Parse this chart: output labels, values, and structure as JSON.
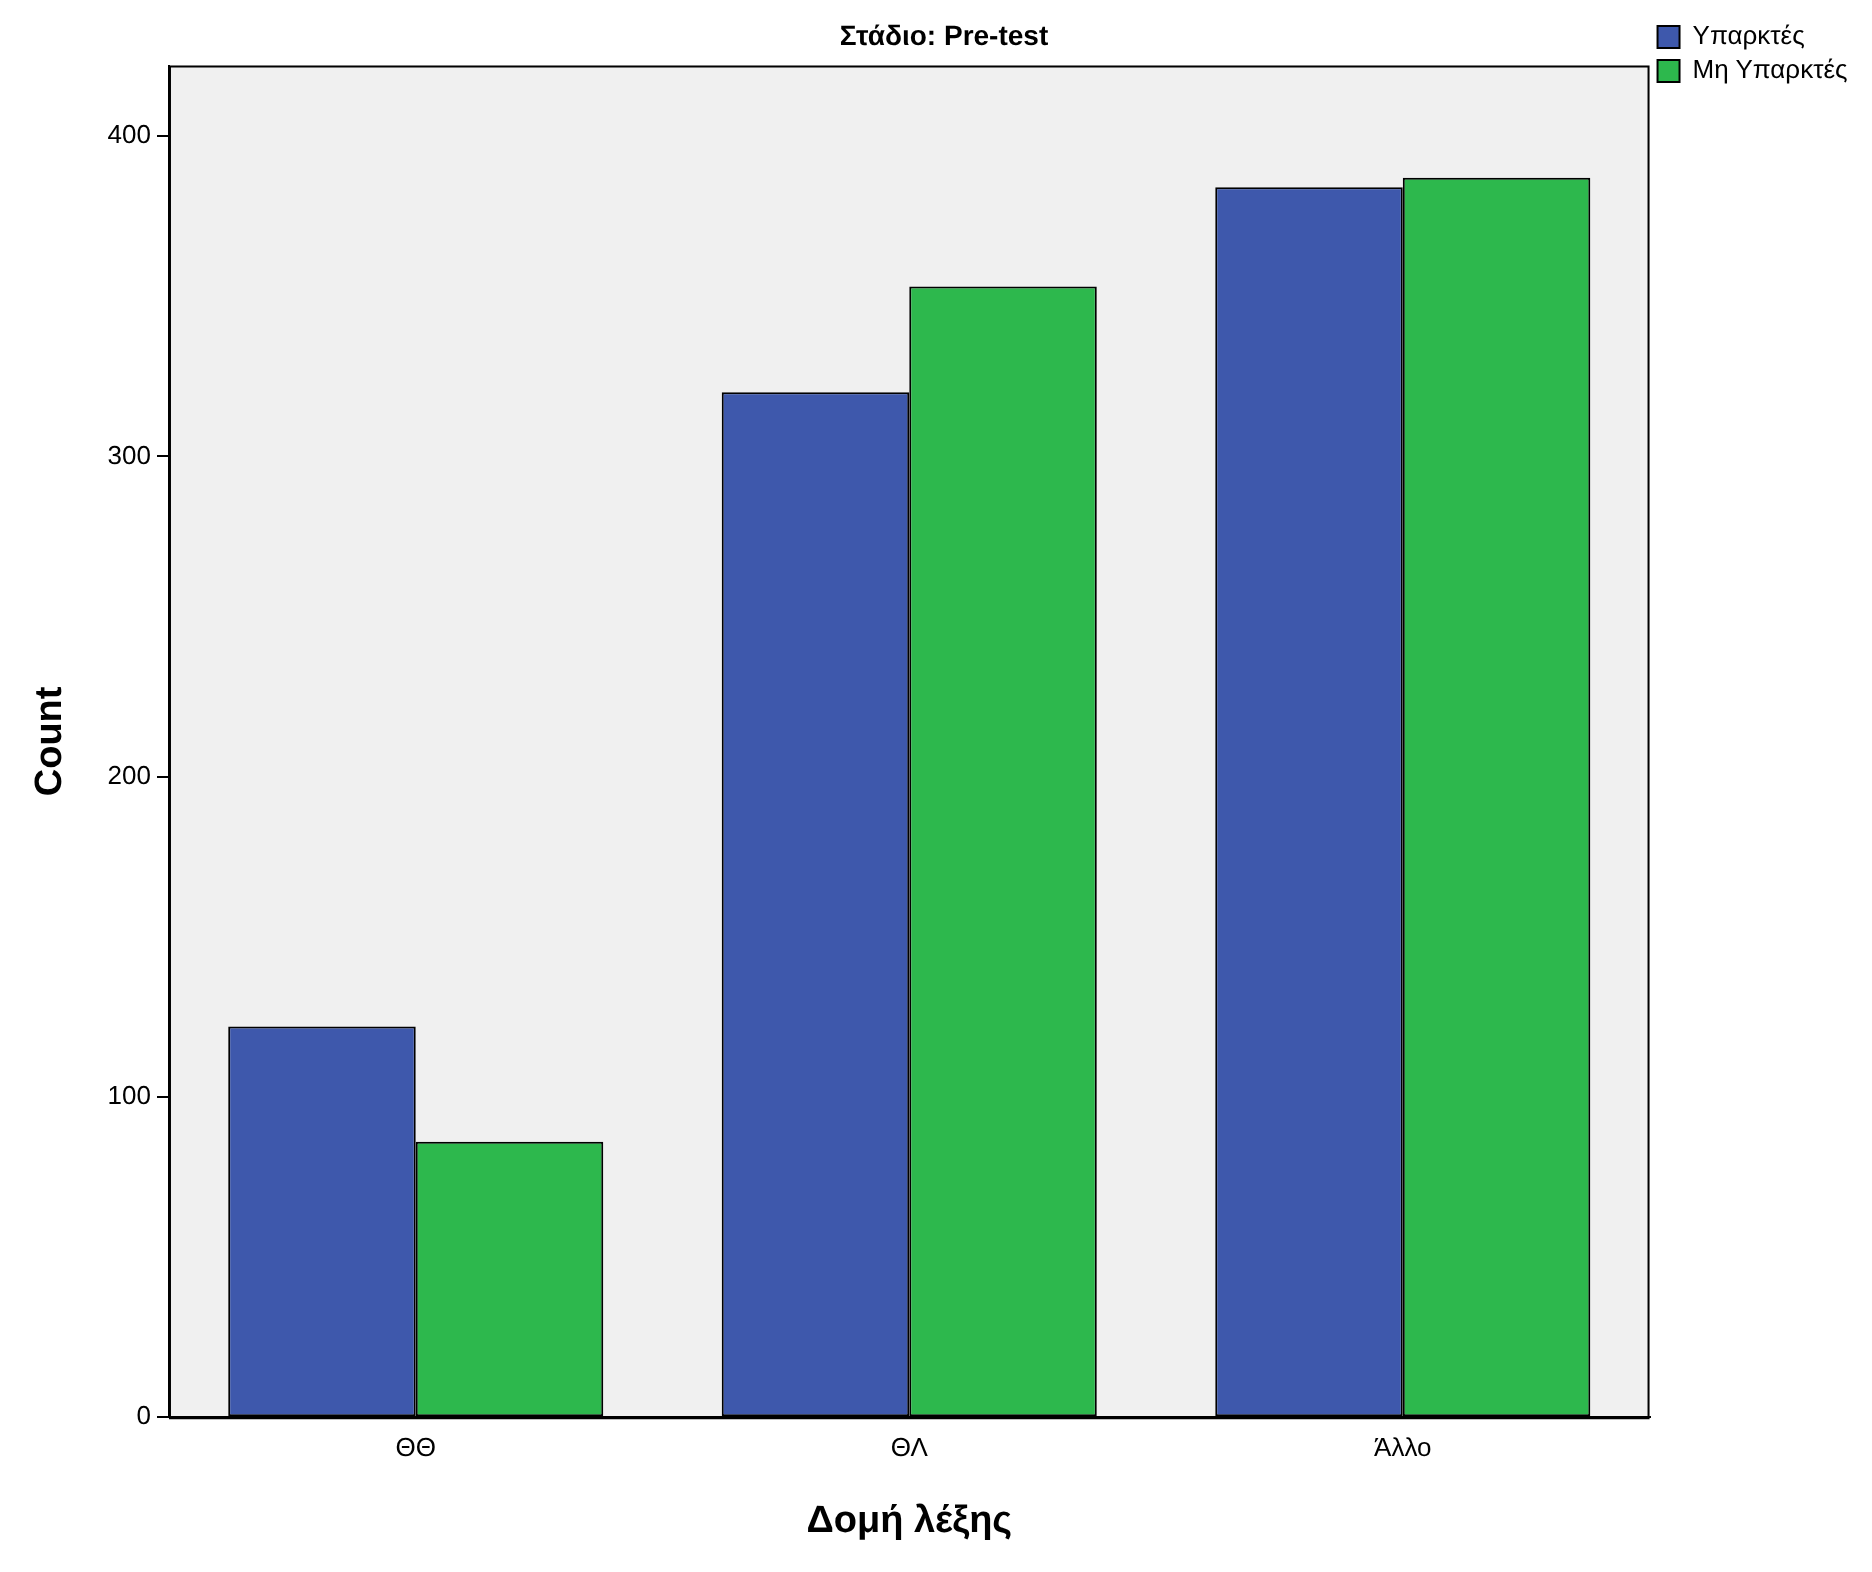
{
  "chart_data": {
    "type": "bar",
    "title": "Στάδιο: Pre-test",
    "xlabel": "Δομή λέξης",
    "ylabel": "Count",
    "categories": [
      "ΘΘ",
      "ΘΛ",
      "Άλλο"
    ],
    "series": [
      {
        "name": "Υπαρκτές",
        "color": "#3e58ac",
        "values": [
          122,
          320,
          384
        ]
      },
      {
        "name": "Μη Υπαρκτές",
        "color": "#2db84d",
        "values": [
          86,
          353,
          387
        ]
      }
    ],
    "ylim": [
      0,
      422
    ],
    "yticks": [
      0,
      100,
      200,
      300,
      400
    ],
    "grid": false,
    "legend": "top right"
  }
}
